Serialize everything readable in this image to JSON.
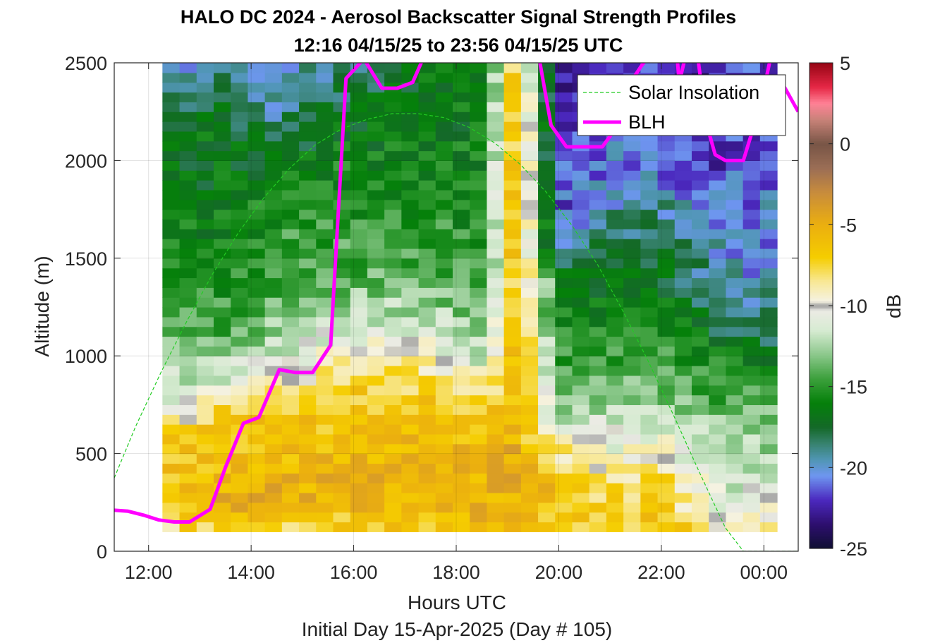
{
  "figure": {
    "title_line1": "HALO DC 2024 - Aerosol Backscatter Signal Strength Profiles",
    "title_line2": "12:16 04/15/25 to 23:56 04/15/25  UTC",
    "xlabel": "Hours UTC",
    "ylabel": "Altitude (m)",
    "subtitle": "Initial Day 15-Apr-2025 (Day # 105)",
    "colorbar_label": "dB"
  },
  "chart_data": {
    "type": "heatmap",
    "title": "HALO DC 2024 - Aerosol Backscatter Signal Strength Profiles",
    "xlabel": "Hours UTC",
    "ylabel": "Altitude (m)",
    "xlim": [
      11.33,
      24.67
    ],
    "ylim": [
      0,
      2500
    ],
    "x_ticks": [
      {
        "value": 12,
        "label": "12:00"
      },
      {
        "value": 14,
        "label": "14:00"
      },
      {
        "value": 16,
        "label": "16:00"
      },
      {
        "value": 18,
        "label": "18:00"
      },
      {
        "value": 20,
        "label": "20:00"
      },
      {
        "value": 22,
        "label": "22:00"
      },
      {
        "value": 24,
        "label": "00:00"
      }
    ],
    "y_ticks": [
      0,
      500,
      1000,
      1500,
      2000,
      2500
    ],
    "grid": true,
    "legend_location": "top-right",
    "colorbar": {
      "label": "dB",
      "range": [
        -25,
        5
      ],
      "ticks": [
        5,
        0,
        -5,
        -10,
        -15,
        -20,
        -25
      ]
    },
    "heatmap": {
      "x_start": 12.27,
      "x_end": 23.93,
      "dx": 0.333,
      "y_start": 100,
      "y_end": 2500,
      "dy": 50,
      "approx_columns": [
        {
          "x": 12.5,
          "profile": [
            [
              100,
              -8
            ],
            [
              250,
              -6
            ],
            [
              600,
              -7
            ],
            [
              750,
              -11
            ],
            [
              1000,
              -13
            ],
            [
              1500,
              -16
            ],
            [
              2200,
              -17
            ],
            [
              2500,
              -20
            ]
          ]
        },
        {
          "x": 13.5,
          "profile": [
            [
              100,
              -7
            ],
            [
              250,
              -5
            ],
            [
              700,
              -7
            ],
            [
              850,
              -11
            ],
            [
              1100,
              -14
            ],
            [
              1500,
              -16
            ],
            [
              2200,
              -17
            ],
            [
              2500,
              -19
            ]
          ]
        },
        {
          "x": 14.5,
          "profile": [
            [
              100,
              -8
            ],
            [
              250,
              -5
            ],
            [
              800,
              -7
            ],
            [
              950,
              -11
            ],
            [
              1300,
              -14
            ],
            [
              1700,
              -15
            ],
            [
              2100,
              -18
            ],
            [
              2500,
              -21
            ]
          ]
        },
        {
          "x": 15.5,
          "profile": [
            [
              100,
              -8
            ],
            [
              250,
              -5
            ],
            [
              820,
              -7
            ],
            [
              1000,
              -10
            ],
            [
              1400,
              -14
            ],
            [
              2000,
              -16
            ],
            [
              2500,
              -19
            ]
          ]
        },
        {
          "x": 16.5,
          "profile": [
            [
              100,
              -7
            ],
            [
              300,
              -5
            ],
            [
              850,
              -7
            ],
            [
              1050,
              -10
            ],
            [
              1400,
              -14
            ],
            [
              2000,
              -16
            ],
            [
              2500,
              -18
            ]
          ]
        },
        {
          "x": 17.5,
          "profile": [
            [
              100,
              -8
            ],
            [
              300,
              -5
            ],
            [
              800,
              -7
            ],
            [
              1000,
              -10
            ],
            [
              1400,
              -14
            ],
            [
              2000,
              -16
            ],
            [
              2500,
              -17
            ]
          ]
        },
        {
          "x": 18.5,
          "profile": [
            [
              100,
              -6
            ],
            [
              300,
              -5
            ],
            [
              750,
              -7
            ],
            [
              950,
              -11
            ],
            [
              1400,
              -15
            ],
            [
              2000,
              -16
            ],
            [
              2500,
              -17
            ]
          ]
        },
        {
          "x": 19.2,
          "profile": [
            [
              100,
              -6
            ],
            [
              400,
              -5
            ],
            [
              1200,
              -6
            ],
            [
              2000,
              -5
            ],
            [
              2500,
              -6
            ]
          ]
        },
        {
          "x": 20.0,
          "profile": [
            [
              100,
              -7
            ],
            [
              300,
              -6
            ],
            [
              550,
              -9
            ],
            [
              700,
              -12
            ],
            [
              1000,
              -15
            ],
            [
              1400,
              -17
            ],
            [
              1600,
              -21
            ],
            [
              2500,
              -23
            ]
          ]
        },
        {
          "x": 21.0,
          "profile": [
            [
              100,
              -7
            ],
            [
              300,
              -8
            ],
            [
              500,
              -10
            ],
            [
              800,
              -13
            ],
            [
              1200,
              -16
            ],
            [
              1500,
              -17
            ],
            [
              1800,
              -20
            ],
            [
              2500,
              -22
            ]
          ]
        },
        {
          "x": 22.0,
          "profile": [
            [
              100,
              -6
            ],
            [
              300,
              -7
            ],
            [
              550,
              -10
            ],
            [
              800,
              -13
            ],
            [
              1200,
              -16
            ],
            [
              1600,
              -18
            ],
            [
              2000,
              -21
            ],
            [
              2500,
              -22
            ]
          ]
        },
        {
          "x": 23.0,
          "profile": [
            [
              100,
              -9
            ],
            [
              300,
              -11
            ],
            [
              500,
              -12
            ],
            [
              900,
              -15
            ],
            [
              1100,
              -17
            ],
            [
              1400,
              -19
            ],
            [
              2000,
              -22
            ],
            [
              2500,
              -23
            ]
          ]
        },
        {
          "x": 23.7,
          "profile": [
            [
              100,
              -8
            ],
            [
              300,
              -11
            ],
            [
              600,
              -13
            ],
            [
              900,
              -15
            ],
            [
              1100,
              -18
            ],
            [
              1400,
              -20
            ],
            [
              2000,
              -21
            ],
            [
              2500,
              -22
            ]
          ]
        }
      ]
    },
    "series": [
      {
        "name": "Solar Insolation",
        "style": "dashed",
        "color": "#22cc22",
        "x": [
          11.33,
          11.75,
          12.25,
          12.75,
          13.25,
          13.75,
          14.25,
          14.75,
          15.25,
          15.75,
          16.25,
          16.75,
          17.25,
          17.75,
          18.25,
          18.75,
          19.25,
          19.75,
          20.25,
          20.75,
          21.25,
          21.75,
          22.25,
          22.75,
          23.25,
          23.6,
          23.95,
          24.67
        ],
        "y": [
          375,
          640,
          920,
          1180,
          1420,
          1630,
          1810,
          1960,
          2080,
          2160,
          2210,
          2240,
          2240,
          2220,
          2170,
          2090,
          1980,
          1840,
          1670,
          1470,
          1230,
          970,
          690,
          400,
          120,
          0,
          0,
          0
        ]
      },
      {
        "name": "BLH",
        "style": "solid",
        "color": "#ff00ff",
        "segments": [
          {
            "x": [
              11.33,
              11.6,
              11.9,
              12.2,
              12.5,
              12.8,
              13.2,
              13.5,
              13.85,
              14.15,
              14.55,
              14.85,
              15.2,
              15.55,
              15.85,
              16.2,
              16.55,
              16.85,
              17.15,
              17.4
            ],
            "y": [
              210,
              205,
              185,
              160,
              150,
              150,
              215,
              430,
              655,
              685,
              930,
              915,
              915,
              1055,
              2420,
              2520,
              2370,
              2370,
              2400,
              2550
            ]
          },
          {
            "x": [
              19.6,
              19.85,
              20.15,
              20.5,
              20.85,
              21.1
            ],
            "y": [
              2550,
              2180,
              2070,
              2070,
              2070,
              2160
            ]
          },
          {
            "x": [
              21.4,
              21.6,
              21.8
            ],
            "y": [
              2400,
              2480,
              2550
            ]
          },
          {
            "x": [
              22.3,
              22.35,
              22.45
            ],
            "y": [
              2550,
              2400,
              2510
            ]
          },
          {
            "x": [
              22.7,
              22.8,
              22.9,
              23.05,
              23.25,
              23.6,
              23.95,
              24.15
            ],
            "y": [
              2550,
              2350,
              2170,
              2030,
              2000,
              2000,
              2300,
              2550
            ]
          },
          {
            "x": [
              24.35,
              24.67
            ],
            "y": [
              2400,
              2250
            ]
          }
        ]
      }
    ]
  }
}
